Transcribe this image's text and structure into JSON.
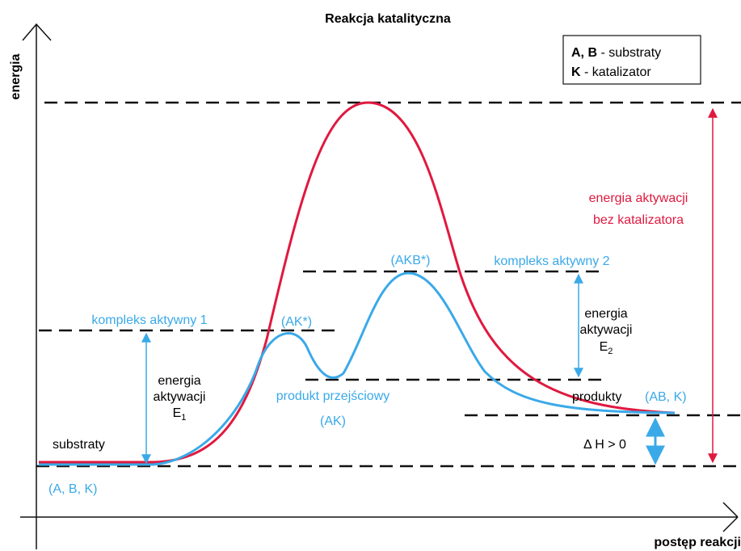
{
  "title": "Reakcja katalityczna",
  "axes": {
    "y_label": "energia",
    "x_label": "postęp reakcji"
  },
  "legend": {
    "items": [
      {
        "key": "A, B",
        "text": " - substraty"
      },
      {
        "key": "K",
        "text": " - katalizator"
      }
    ]
  },
  "labels": {
    "uncatalyzed": [
      "energia aktywacji",
      "bez katalizatora"
    ],
    "akb_star": "(AKB*)",
    "complex2": "kompleks aktywny 2",
    "e2": [
      "energia",
      "aktywacji",
      "E",
      "2"
    ],
    "complex1": "kompleks aktywny 1",
    "ak_star": "(AK*)",
    "e1": [
      "energia",
      "aktywacji",
      "E",
      "1"
    ],
    "intermediate": "produkt przejściowy",
    "ak": "(AK)",
    "products": "produkty",
    "products_formula": "(AB, K)",
    "delta_h": "Δ H > 0",
    "substrates": "substraty",
    "substrates_formula": "(A, B, K)"
  }
}
